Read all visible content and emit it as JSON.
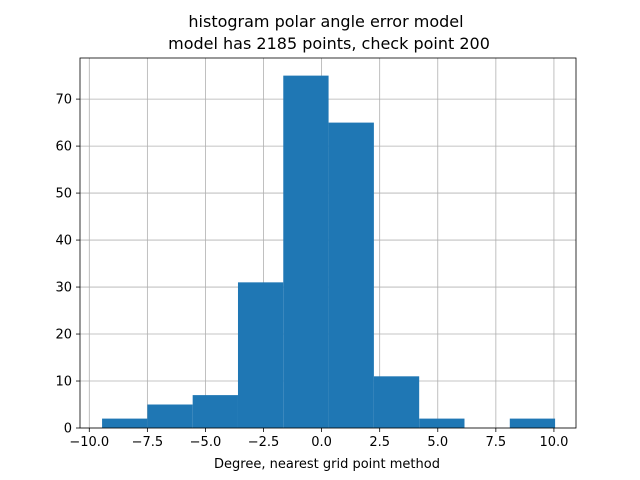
{
  "chart_data": {
    "type": "histogram",
    "title": "histogram polar angle error model",
    "subtitle": "model has 2185 points, check point 200",
    "xlabel": "Degree, nearest grid point method",
    "ylabel": "",
    "xlim": [
      -10.4,
      10.95
    ],
    "ylim": [
      0,
      78.75
    ],
    "bar_color": "#1f77b4",
    "grid": true,
    "xticks": [
      -10.0,
      -7.5,
      -5.0,
      -2.5,
      0.0,
      2.5,
      5.0,
      7.5,
      10.0
    ],
    "xtick_labels": [
      "−10.0",
      "−7.5",
      "−5.0",
      "−2.5",
      "0.0",
      "2.5",
      "5.0",
      "7.5",
      "10.0"
    ],
    "yticks": [
      0,
      10,
      20,
      30,
      40,
      50,
      60,
      70
    ],
    "ytick_labels": [
      "0",
      "10",
      "20",
      "30",
      "40",
      "50",
      "60",
      "70"
    ],
    "bins": [
      {
        "x0": -9.45,
        "x1": -7.5,
        "count": 2
      },
      {
        "x0": -7.5,
        "x1": -5.55,
        "count": 5
      },
      {
        "x0": -5.55,
        "x1": -3.6,
        "count": 7
      },
      {
        "x0": -3.6,
        "x1": -1.65,
        "count": 31
      },
      {
        "x0": -1.65,
        "x1": 0.3,
        "count": 75
      },
      {
        "x0": 0.3,
        "x1": 2.25,
        "count": 65
      },
      {
        "x0": 2.25,
        "x1": 4.2,
        "count": 11
      },
      {
        "x0": 4.2,
        "x1": 6.15,
        "count": 2
      },
      {
        "x0": 6.15,
        "x1": 8.1,
        "count": 0
      },
      {
        "x0": 8.1,
        "x1": 10.05,
        "count": 2
      }
    ]
  }
}
